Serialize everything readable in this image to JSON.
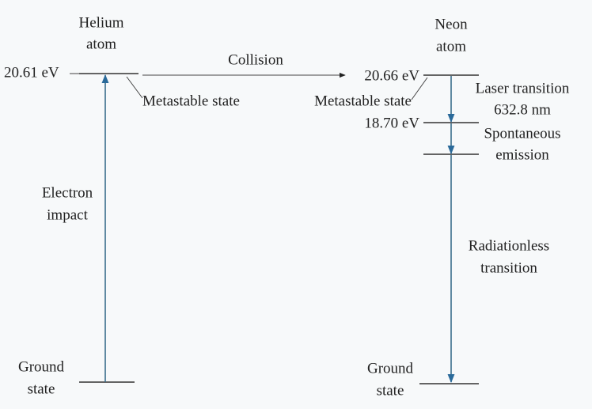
{
  "helium": {
    "title": [
      "Helium",
      "atom"
    ],
    "level": "20.61 eV",
    "metastable": "Metastable state",
    "excitation": [
      "Electron",
      "impact"
    ],
    "ground": [
      "Ground",
      "state"
    ]
  },
  "collision": "Collision",
  "neon": {
    "title": [
      "Neon",
      "atom"
    ],
    "upper_level": "20.66 eV",
    "metastable": "Metastable state",
    "lower_level": "18.70 eV",
    "laser": [
      "Laser transition",
      "632.8 nm"
    ],
    "spontaneous": [
      "Spontaneous",
      "emission"
    ],
    "radiationless": [
      "Radiationless",
      "transition"
    ],
    "ground": [
      "Ground",
      "state"
    ]
  }
}
